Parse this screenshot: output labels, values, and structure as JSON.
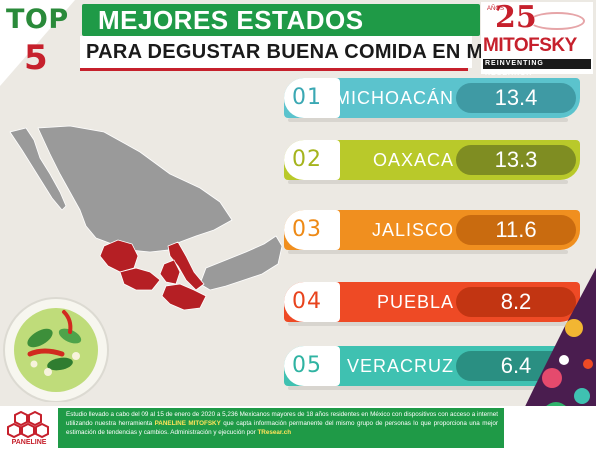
{
  "badge": {
    "top_word": "TOP",
    "top_number": "5"
  },
  "header": {
    "title": "MEJORES ESTADOS",
    "subtitle": "PARA DEGUSTAR BUENA COMIDA EN MÉXICO"
  },
  "logo": {
    "anniversary_number": "25",
    "anniversary_label": "AÑOS",
    "name": "MITOFSKY",
    "tagline": "REINVENTING RESEARCH"
  },
  "ranking": [
    {
      "rank": "01",
      "state": "MICHOACÁN",
      "score": "13.4",
      "color": "#5bc3cd",
      "pill": "#3f9aa4",
      "numcolor": "#3aa8b3"
    },
    {
      "rank": "02",
      "state": "OAXACA",
      "score": "13.3",
      "color": "#b9c92a",
      "pill": "#7f8d22",
      "numcolor": "#a5b41d"
    },
    {
      "rank": "03",
      "state": "JALISCO",
      "score": "11.6",
      "color": "#f08f1f",
      "pill": "#c96b0f",
      "numcolor": "#ee8a16"
    },
    {
      "rank": "04",
      "state": "PUEBLA",
      "score": "8.2",
      "color": "#ee4a25",
      "pill": "#c23512",
      "numcolor": "#e8431d"
    },
    {
      "rank": "05",
      "state": "VERACRUZ",
      "score": "6.4",
      "color": "#3fc1b1",
      "pill": "#2a8f82",
      "numcolor": "#2fb3a2"
    }
  ],
  "footer": {
    "text_1": "Estudio llevado a cabo del 09 al 15 de enero de 2020 a 5,236 Mexicanos mayores de 18 años residentes en México con dispositivos con acceso a internet utilizando nuestra herramienta ",
    "text_brand": "PANELINE MITOFSKY",
    "text_2": " que capta información permanente del mismo grupo de personas lo que proporciona una mejor estimación de tendencias y cambios. Administración y ejecución por ",
    "text_link": "TResear.ch",
    "paneline_label": "PANELINE"
  },
  "colors": {
    "brand_red": "#c6202c",
    "brand_green": "#1f9a47",
    "map_highlight": "#b51f24",
    "map_base": "#9a9a9a"
  }
}
